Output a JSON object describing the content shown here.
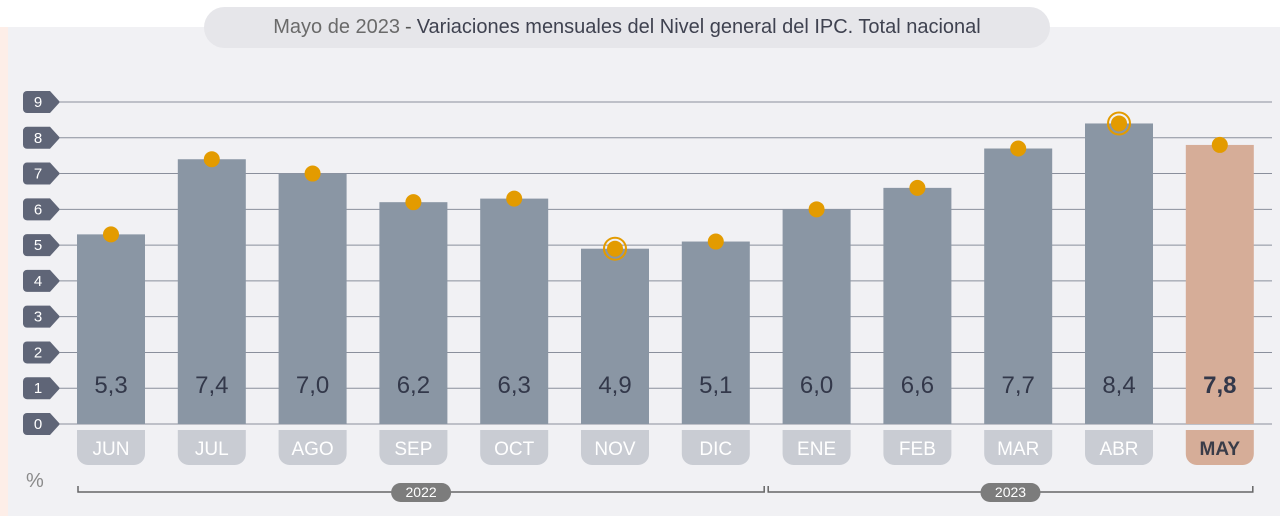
{
  "title": {
    "date": "Mayo de 2023",
    "separator": "-",
    "text": "Variaciones mensuales del Nivel general del IPC. Total nacional"
  },
  "y_unit": "%",
  "colors": {
    "bar": "#8a96a4",
    "bar_highlight": "#d6ad98",
    "marker": "#e39b00",
    "tab": "#c9ccd3",
    "tab_highlight": "#d6ad98",
    "axis_badge": "#5f6577",
    "year_badge": "#7c7c7c",
    "value_text": "#33384a"
  },
  "chart_data": {
    "type": "bar",
    "categories": [
      "JUN",
      "JUL",
      "AGO",
      "SEP",
      "OCT",
      "NOV",
      "DIC",
      "ENE",
      "FEB",
      "MAR",
      "ABR",
      "MAY"
    ],
    "values": [
      5.3,
      7.4,
      7.0,
      6.2,
      6.3,
      4.9,
      5.1,
      6.0,
      6.6,
      7.7,
      8.4,
      7.8
    ],
    "value_labels": [
      "5,3",
      "7,4",
      "7,0",
      "6,2",
      "6,3",
      "4,9",
      "5,1",
      "6,0",
      "6,6",
      "7,7",
      "8,4",
      "7,8"
    ],
    "highlighted_category": "MAY",
    "ringed_markers": [
      "NOV",
      "ABR"
    ],
    "ylim": [
      0,
      9
    ],
    "yticks": [
      0,
      1,
      2,
      3,
      4,
      5,
      6,
      7,
      8,
      9
    ],
    "grid": true,
    "year_groups": [
      {
        "label": "2022",
        "from": "JUN",
        "to": "DIC"
      },
      {
        "label": "2023",
        "from": "ENE",
        "to": "MAY"
      }
    ]
  }
}
